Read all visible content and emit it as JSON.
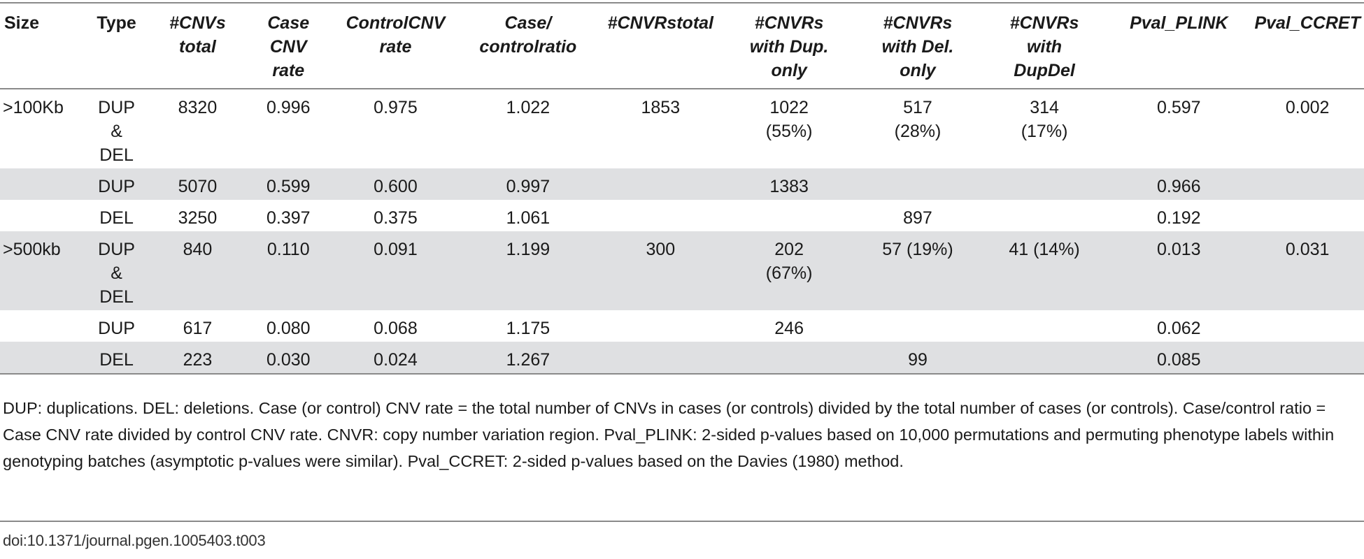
{
  "table": {
    "headers": {
      "size": "Size",
      "type": "Type",
      "cnvs_total": [
        "#CNVs",
        "total"
      ],
      "case_rate": [
        "Case",
        "CNV",
        "rate"
      ],
      "control_rate": [
        "ControlCNV",
        "rate"
      ],
      "ratio": [
        "Case/",
        "controlratio"
      ],
      "cnvr_total": [
        "#CNVRstotal"
      ],
      "dup_only": [
        "#CNVRs",
        "with Dup.",
        "only"
      ],
      "del_only": [
        "#CNVRs",
        "with Del.",
        "only"
      ],
      "dupdel": [
        "#CNVRs",
        "with",
        "DupDel"
      ],
      "pval_plink": [
        "Pval_PLINK"
      ],
      "pval_ccret": [
        "Pval_CCRET"
      ]
    },
    "rows": [
      {
        "size": ">100Kb",
        "type": [
          "DUP",
          "&",
          "DEL"
        ],
        "cnvs_total": "8320",
        "case_rate": "0.996",
        "control_rate": "0.975",
        "ratio": "1.022",
        "cnvr_total": "1853",
        "dup_only": [
          "1022",
          "(55%)"
        ],
        "del_only": [
          "517",
          "(28%)"
        ],
        "dupdel": [
          "314",
          "(17%)"
        ],
        "pval_plink": "0.597",
        "pval_ccret": "0.002"
      },
      {
        "size": "",
        "type": [
          "DUP"
        ],
        "cnvs_total": "5070",
        "case_rate": "0.599",
        "control_rate": "0.600",
        "ratio": "0.997",
        "cnvr_total": "",
        "dup_only": [
          "1383"
        ],
        "del_only": [
          ""
        ],
        "dupdel": [
          ""
        ],
        "pval_plink": "0.966",
        "pval_ccret": ""
      },
      {
        "size": "",
        "type": [
          "DEL"
        ],
        "cnvs_total": "3250",
        "case_rate": "0.397",
        "control_rate": "0.375",
        "ratio": "1.061",
        "cnvr_total": "",
        "dup_only": [
          ""
        ],
        "del_only": [
          "897"
        ],
        "dupdel": [
          ""
        ],
        "pval_plink": "0.192",
        "pval_ccret": ""
      },
      {
        "size": ">500kb",
        "type": [
          "DUP",
          "&",
          "DEL"
        ],
        "cnvs_total": "840",
        "case_rate": "0.110",
        "control_rate": "0.091",
        "ratio": "1.199",
        "cnvr_total": "300",
        "dup_only": [
          "202",
          "(67%)"
        ],
        "del_only": [
          "57 (19%)"
        ],
        "dupdel": [
          "41 (14%)"
        ],
        "pval_plink": "0.013",
        "pval_ccret": "0.031"
      },
      {
        "size": "",
        "type": [
          "DUP"
        ],
        "cnvs_total": "617",
        "case_rate": "0.080",
        "control_rate": "0.068",
        "ratio": "1.175",
        "cnvr_total": "",
        "dup_only": [
          "246"
        ],
        "del_only": [
          ""
        ],
        "dupdel": [
          ""
        ],
        "pval_plink": "0.062",
        "pval_ccret": ""
      },
      {
        "size": "",
        "type": [
          "DEL"
        ],
        "cnvs_total": "223",
        "case_rate": "0.030",
        "control_rate": "0.024",
        "ratio": "1.267",
        "cnvr_total": "",
        "dup_only": [
          ""
        ],
        "del_only": [
          "99"
        ],
        "dupdel": [
          ""
        ],
        "pval_plink": "0.085",
        "pval_ccret": ""
      }
    ]
  },
  "footnote": "DUP: duplications. DEL: deletions. Case (or control) CNV rate = the total number of CNVs in cases (or controls) divided by the total number of cases (or controls). Case/control ratio = Case CNV rate divided by control CNV rate. CNVR: copy number variation region. Pval_PLINK: 2-sided p-values based on 10,000 permutations and permuting phenotype labels within genotyping batches (asymptotic p-values were similar). Pval_CCRET: 2-sided p-values based on the Davies (1980) method.",
  "doi": "doi:10.1371/journal.pgen.1005403.t003"
}
